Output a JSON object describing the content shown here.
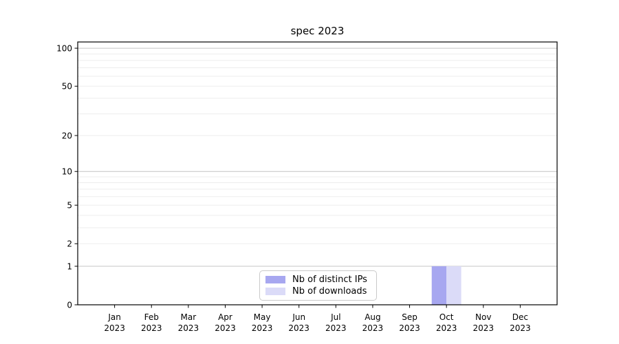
{
  "figure": {
    "background": "#ffffff"
  },
  "chart_data": {
    "type": "bar",
    "title": "spec 2023",
    "categories": [
      "Jan 2023",
      "Feb 2023",
      "Mar 2023",
      "Apr 2023",
      "May 2023",
      "Jun 2023",
      "Jul 2023",
      "Aug 2023",
      "Sep 2023",
      "Oct 2023",
      "Nov 2023",
      "Dec 2023"
    ],
    "series": [
      {
        "name": "Nb of distinct IPs",
        "color": "#a7a7f0",
        "values": [
          0,
          0,
          0,
          0,
          0,
          0,
          0,
          0,
          0,
          1,
          0,
          0
        ]
      },
      {
        "name": "Nb of downloads",
        "color": "#dbdbf8",
        "values": [
          0,
          0,
          0,
          0,
          0,
          0,
          0,
          0,
          0,
          1,
          0,
          0
        ]
      }
    ],
    "xlabel": "",
    "ylabel": "",
    "yscale": "log1p",
    "ylim": [
      0,
      112
    ],
    "yticks": [
      0,
      1,
      2,
      5,
      10,
      20,
      50,
      100
    ],
    "yticks_decade": [
      1,
      10,
      100
    ],
    "yticks_minor": [
      3,
      4,
      6,
      7,
      8,
      9,
      30,
      40,
      60,
      70,
      80,
      90
    ],
    "grid": true,
    "legend_position": "lower-center",
    "axis_color": "#000000",
    "grid_decade_color": "#c4c4c4",
    "grid_minor_color": "#ededed"
  }
}
